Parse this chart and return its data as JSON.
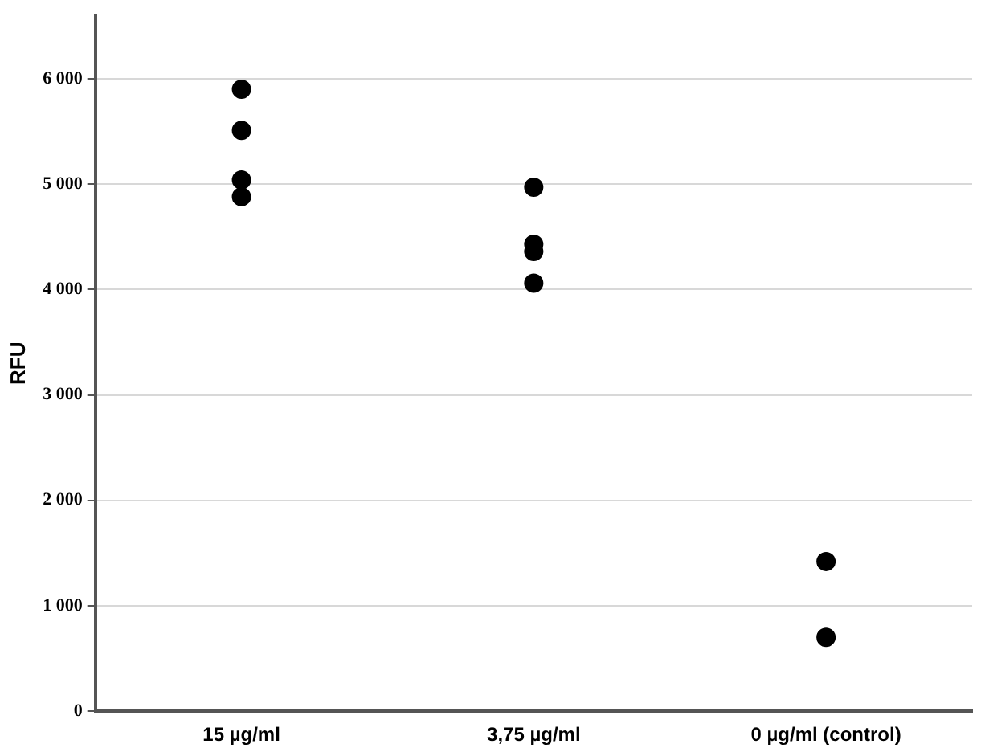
{
  "chart_data": {
    "type": "scatter",
    "ylabel": "RFU",
    "categories": [
      "15 µg/ml",
      "3,75 µg/ml",
      "0 µg/ml (control)"
    ],
    "series": [
      {
        "color": "#000000",
        "x": [
          "15 µg/ml",
          "15 µg/ml",
          "15 µg/ml",
          "15 µg/ml",
          "3,75 µg/ml",
          "3,75 µg/ml",
          "3,75 µg/ml",
          "3,75 µg/ml",
          "0 µg/ml (control)",
          "0 µg/ml (control)"
        ],
        "values": [
          5900,
          5510,
          5040,
          4880,
          4970,
          4430,
          4360,
          4060,
          1420,
          700
        ]
      }
    ],
    "ylim": [
      0,
      6600
    ],
    "yticks": [
      0,
      {
        "value": 1000,
        "label": "1 000"
      },
      {
        "value": 2000,
        "label": "2 000"
      },
      {
        "value": 3000,
        "label": "3 000"
      },
      {
        "value": 4000,
        "label": "4 000"
      },
      {
        "value": 5000,
        "label": "5 000"
      },
      {
        "value": 6000,
        "label": "6 000"
      }
    ],
    "grid": "y",
    "marker": "circle"
  }
}
